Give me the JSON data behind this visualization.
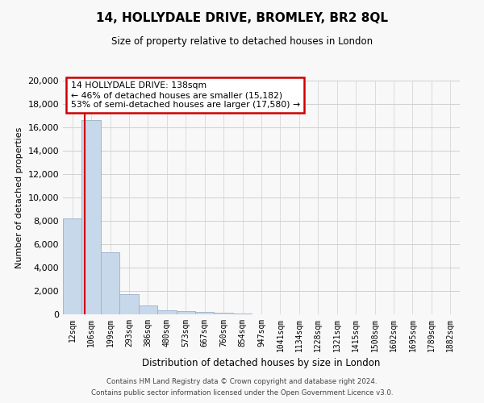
{
  "title": "14, HOLLYDALE DRIVE, BROMLEY, BR2 8QL",
  "subtitle": "Size of property relative to detached houses in London",
  "bar_labels": [
    "12sqm",
    "106sqm",
    "199sqm",
    "293sqm",
    "386sqm",
    "480sqm",
    "573sqm",
    "667sqm",
    "760sqm",
    "854sqm",
    "947sqm",
    "1041sqm",
    "1134sqm",
    "1228sqm",
    "1321sqm",
    "1415sqm",
    "1508sqm",
    "1602sqm",
    "1695sqm",
    "1789sqm",
    "1882sqm"
  ],
  "bar_values": [
    8200,
    16600,
    5300,
    1750,
    750,
    350,
    250,
    200,
    150,
    80,
    0,
    0,
    0,
    0,
    0,
    0,
    0,
    0,
    0,
    0,
    0
  ],
  "bar_color": "#c8d8eb",
  "bar_edge_color": "#9ab0c8",
  "vline_x_index": 1,
  "vline_color": "#cc0000",
  "annotation_text": "14 HOLLYDALE DRIVE: 138sqm\n← 46% of detached houses are smaller (15,182)\n53% of semi-detached houses are larger (17,580) →",
  "xlabel": "Distribution of detached houses by size in London",
  "ylabel": "Number of detached properties",
  "ylim": [
    0,
    20000
  ],
  "yticks": [
    0,
    2000,
    4000,
    6000,
    8000,
    10000,
    12000,
    14000,
    16000,
    18000,
    20000
  ],
  "footer_line1": "Contains HM Land Registry data © Crown copyright and database right 2024.",
  "footer_line2": "Contains public sector information licensed under the Open Government Licence v3.0.",
  "bg_color": "#f8f8f8",
  "grid_color": "#d0d0d0"
}
